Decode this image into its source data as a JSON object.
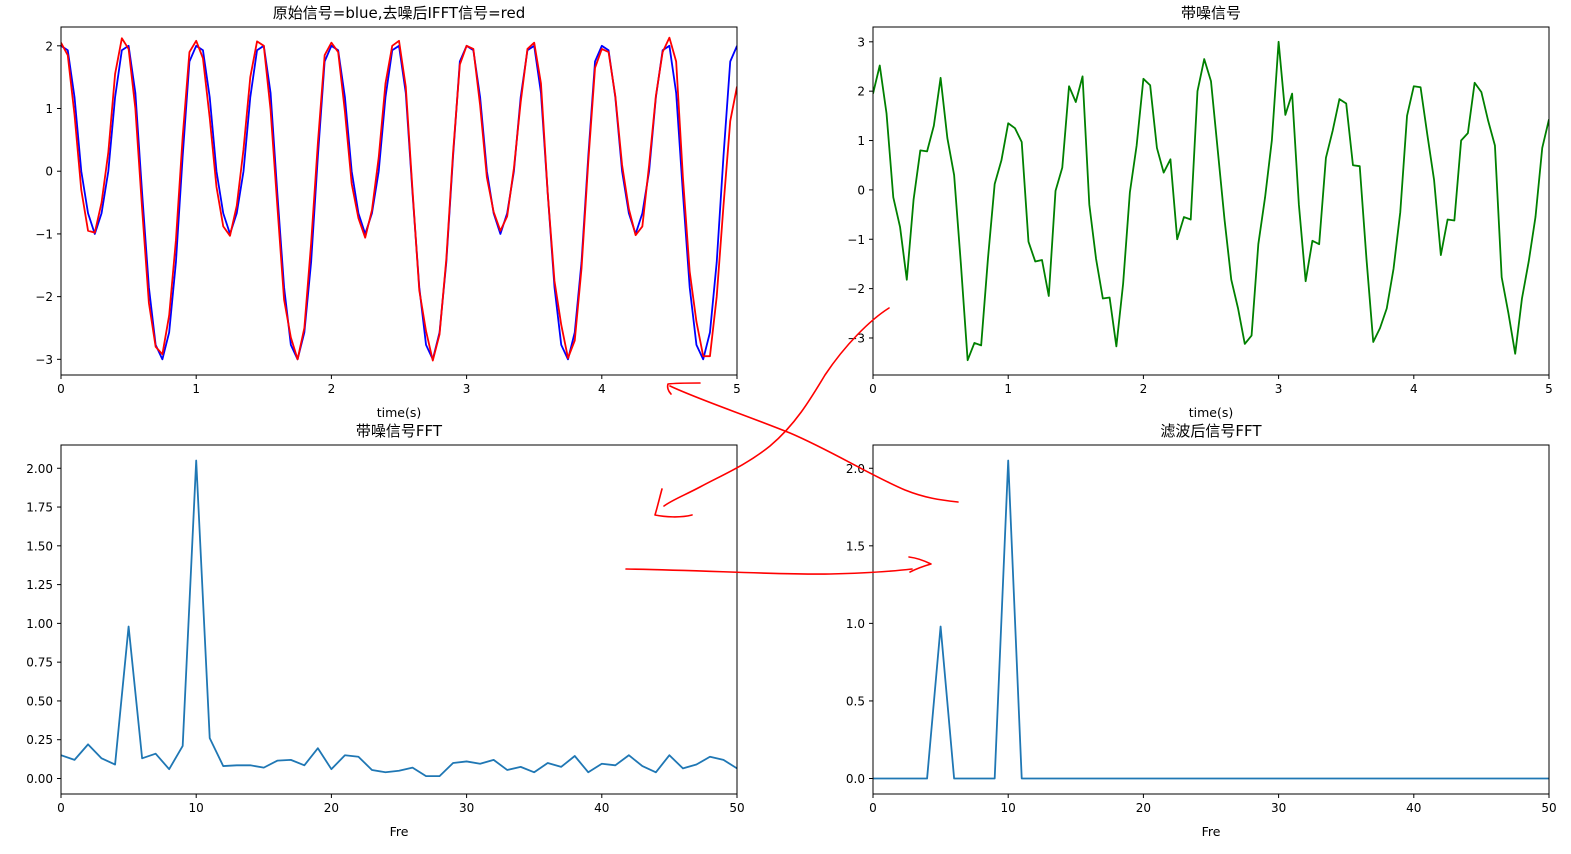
{
  "colors": {
    "blue": "#0000ff",
    "red": "#ff0000",
    "green": "#008000",
    "fft": "#1f77b4",
    "annotation": "#ff0000"
  },
  "chart_data": [
    {
      "type": "line",
      "title": "原始信号=blue,去噪后IFFT信号=red",
      "xlabel": "time(s)",
      "ylabel": "",
      "xlim": [
        0,
        5
      ],
      "ylim": [
        -3.25,
        2.3
      ],
      "xticks": [
        "0",
        "1",
        "2",
        "3",
        "4",
        "5"
      ],
      "yticks": [
        "2",
        "1",
        "0",
        "−1",
        "−2",
        "−3"
      ],
      "grid": false,
      "series": [
        {
          "color": "blue",
          "x": [
            0,
            0.05,
            0.1,
            0.15,
            0.2,
            0.25,
            0.3,
            0.35,
            0.4,
            0.45,
            0.5,
            0.55,
            0.6,
            0.65,
            0.7,
            0.75,
            0.8,
            0.85,
            0.9,
            0.95,
            1.0,
            1.05,
            1.1,
            1.15,
            1.2,
            1.25,
            1.3,
            1.35,
            1.4,
            1.45,
            1.5,
            1.55,
            1.6,
            1.65,
            1.7,
            1.75,
            1.8,
            1.85,
            1.9,
            1.95,
            2.0,
            2.05,
            2.1,
            2.15,
            2.2,
            2.25,
            2.3,
            2.35,
            2.4,
            2.45,
            2.5,
            2.55,
            2.6,
            2.65,
            2.7,
            2.75,
            2.8,
            2.85,
            2.9,
            2.95,
            3.0,
            3.05,
            3.1,
            3.15,
            3.2,
            3.25,
            3.3,
            3.35,
            3.4,
            3.45,
            3.5,
            3.55,
            3.6,
            3.65,
            3.7,
            3.75,
            3.8,
            3.85,
            3.9,
            3.95,
            4.0,
            4.05,
            4.1,
            4.15,
            4.2,
            4.25,
            4.3,
            4.35,
            4.4,
            4.45,
            4.5,
            4.55,
            4.6,
            4.65,
            4.7,
            4.75,
            4.8,
            4.85,
            4.9,
            4.95,
            5.0
          ],
          "y": [
            2.0,
            1.93,
            1.18,
            0.0,
            -0.67,
            -1.0,
            -0.67,
            0.0,
            1.18,
            1.93,
            2.0,
            1.25,
            -0.35,
            -1.85,
            -2.77,
            -3.0,
            -2.57,
            -1.45,
            0.24,
            1.75,
            2.0,
            1.93,
            1.18,
            0.0,
            -0.67,
            -1.0,
            -0.67,
            0.0,
            1.18,
            1.93,
            2.0,
            1.25,
            -0.35,
            -1.85,
            -2.77,
            -3.0,
            -2.57,
            -1.45,
            0.24,
            1.75,
            2.0,
            1.93,
            1.18,
            0.0,
            -0.67,
            -1.0,
            -0.67,
            0.0,
            1.18,
            1.93,
            2.0,
            1.25,
            -0.35,
            -1.85,
            -2.77,
            -3.0,
            -2.57,
            -1.45,
            0.24,
            1.75,
            2.0,
            1.93,
            1.18,
            0.0,
            -0.67,
            -1.0,
            -0.67,
            0.0,
            1.18,
            1.93,
            2.0,
            1.25,
            -0.35,
            -1.85,
            -2.77,
            -3.0,
            -2.57,
            -1.45,
            0.24,
            1.75,
            2.0,
            1.93,
            1.18,
            0.0,
            -0.67,
            -1.0,
            -0.67,
            0.0,
            1.18,
            1.93,
            2.0,
            1.25,
            -0.35,
            -1.85,
            -2.77,
            -3.0,
            -2.57,
            -1.45,
            0.24,
            1.75,
            2.0
          ]
        },
        {
          "color": "red",
          "x": [
            0,
            0.05,
            0.1,
            0.15,
            0.2,
            0.25,
            0.3,
            0.35,
            0.4,
            0.45,
            0.5,
            0.55,
            0.6,
            0.65,
            0.7,
            0.75,
            0.8,
            0.85,
            0.9,
            0.95,
            1.0,
            1.05,
            1.1,
            1.15,
            1.2,
            1.25,
            1.3,
            1.35,
            1.4,
            1.45,
            1.5,
            1.55,
            1.6,
            1.65,
            1.7,
            1.75,
            1.8,
            1.85,
            1.9,
            1.95,
            2.0,
            2.05,
            2.1,
            2.15,
            2.2,
            2.25,
            2.3,
            2.35,
            2.4,
            2.45,
            2.5,
            2.55,
            2.6,
            2.65,
            2.7,
            2.75,
            2.8,
            2.85,
            2.9,
            2.95,
            3.0,
            3.05,
            3.1,
            3.15,
            3.2,
            3.25,
            3.3,
            3.35,
            3.4,
            3.45,
            3.5,
            3.55,
            3.6,
            3.65,
            3.7,
            3.75,
            3.8,
            3.85,
            3.9,
            3.95,
            4.0,
            4.05,
            4.1,
            4.15,
            4.2,
            4.25,
            4.3,
            4.35,
            4.4,
            4.45,
            4.5,
            4.55,
            4.6,
            4.65,
            4.7,
            4.75,
            4.8,
            4.85,
            4.9,
            4.95,
            5.0
          ],
          "y": [
            2.05,
            1.85,
            0.9,
            -0.3,
            -0.95,
            -0.98,
            -0.5,
            0.3,
            1.55,
            2.12,
            1.95,
            1.0,
            -0.6,
            -2.1,
            -2.8,
            -2.92,
            -2.3,
            -1.1,
            0.55,
            1.9,
            2.08,
            1.8,
            0.85,
            -0.25,
            -0.88,
            -1.03,
            -0.55,
            0.35,
            1.5,
            2.07,
            2.0,
            0.98,
            -0.55,
            -2.05,
            -2.65,
            -3.0,
            -2.5,
            -1.15,
            0.45,
            1.85,
            2.05,
            1.9,
            0.95,
            -0.2,
            -0.75,
            -1.06,
            -0.62,
            0.22,
            1.4,
            2.0,
            2.08,
            1.35,
            -0.3,
            -1.9,
            -2.55,
            -3.02,
            -2.6,
            -1.4,
            0.3,
            1.7,
            2.0,
            1.95,
            1.05,
            -0.1,
            -0.65,
            -0.95,
            -0.72,
            0.05,
            1.1,
            1.95,
            2.05,
            1.4,
            -0.35,
            -1.75,
            -2.45,
            -2.98,
            -2.7,
            -1.55,
            0.15,
            1.65,
            1.95,
            1.9,
            1.2,
            0.1,
            -0.6,
            -1.02,
            -0.88,
            0.1,
            1.2,
            1.9,
            2.13,
            1.75,
            -0.1,
            -1.6,
            -2.4,
            -2.95,
            -2.95,
            -2.0,
            -0.55,
            0.8,
            1.35
          ]
        }
      ]
    },
    {
      "type": "line",
      "title": "带噪信号",
      "xlabel": "time(s)",
      "ylabel": "",
      "xlim": [
        0,
        5
      ],
      "ylim": [
        -3.75,
        3.3
      ],
      "xticks": [
        "0",
        "1",
        "2",
        "3",
        "4",
        "5"
      ],
      "yticks": [
        "3",
        "2",
        "1",
        "0",
        "−1",
        "−2",
        "−3"
      ],
      "grid": false,
      "series": [
        {
          "color": "green",
          "x": [
            0,
            0.05,
            0.1,
            0.15,
            0.2,
            0.25,
            0.3,
            0.35,
            0.4,
            0.45,
            0.5,
            0.55,
            0.6,
            0.65,
            0.7,
            0.75,
            0.8,
            0.85,
            0.9,
            0.95,
            1.0,
            1.05,
            1.1,
            1.15,
            1.2,
            1.25,
            1.3,
            1.35,
            1.4,
            1.45,
            1.5,
            1.55,
            1.6,
            1.65,
            1.7,
            1.75,
            1.8,
            1.85,
            1.9,
            1.95,
            2.0,
            2.05,
            2.1,
            2.15,
            2.2,
            2.25,
            2.3,
            2.35,
            2.4,
            2.45,
            2.5,
            2.55,
            2.6,
            2.65,
            2.7,
            2.75,
            2.8,
            2.85,
            2.9,
            2.95,
            3.0,
            3.05,
            3.1,
            3.15,
            3.2,
            3.25,
            3.3,
            3.35,
            3.4,
            3.45,
            3.5,
            3.55,
            3.6,
            3.65,
            3.7,
            3.75,
            3.8,
            3.85,
            3.9,
            3.95,
            4.0,
            4.05,
            4.1,
            4.15,
            4.2,
            4.25,
            4.3,
            4.35,
            4.4,
            4.45,
            4.5,
            4.55,
            4.6,
            4.65,
            4.7,
            4.75,
            4.8,
            4.85,
            4.9,
            4.95,
            5.0
          ],
          "y": [
            1.95,
            2.52,
            1.55,
            -0.15,
            -0.75,
            -1.82,
            -0.2,
            0.8,
            0.78,
            1.3,
            2.27,
            1.05,
            0.3,
            -1.5,
            -3.45,
            -3.1,
            -3.15,
            -1.4,
            0.12,
            0.6,
            1.35,
            1.25,
            0.97,
            -1.05,
            -1.45,
            -1.42,
            -2.15,
            -0.02,
            0.45,
            2.1,
            1.78,
            2.3,
            -0.3,
            -1.4,
            -2.2,
            -2.18,
            -3.17,
            -1.9,
            -0.05,
            0.9,
            2.25,
            2.12,
            0.85,
            0.35,
            0.62,
            -1.0,
            -0.55,
            -0.6,
            2.0,
            2.65,
            2.2,
            0.8,
            -0.6,
            -1.82,
            -2.4,
            -3.12,
            -2.95,
            -1.1,
            -0.15,
            1.0,
            3.0,
            1.52,
            1.95,
            -0.3,
            -1.85,
            -1.03,
            -1.1,
            0.65,
            1.2,
            1.84,
            1.75,
            0.5,
            0.48,
            -1.4,
            -3.08,
            -2.8,
            -2.4,
            -1.6,
            -0.45,
            1.5,
            2.1,
            2.08,
            1.12,
            0.2,
            -1.32,
            -0.6,
            -0.62,
            1.0,
            1.15,
            2.17,
            1.98,
            1.4,
            0.9,
            -1.77,
            -2.5,
            -3.32,
            -2.2,
            -1.45,
            -0.55,
            0.85,
            1.43
          ]
        }
      ]
    },
    {
      "type": "line",
      "title": "带噪信号FFT",
      "xlabel": "Fre",
      "ylabel": "",
      "xlim": [
        0,
        50
      ],
      "ylim": [
        -0.1,
        2.15
      ],
      "xticks": [
        "0",
        "10",
        "20",
        "30",
        "40",
        "50"
      ],
      "yticks": [
        "2.00",
        "1.75",
        "1.50",
        "1.25",
        "1.00",
        "0.75",
        "0.50",
        "0.25",
        "0.00"
      ],
      "grid": false,
      "series": [
        {
          "color": "fft",
          "x": [
            0,
            1,
            2,
            3,
            4,
            5,
            6,
            7,
            8,
            9,
            10,
            11,
            12,
            13,
            14,
            15,
            16,
            17,
            18,
            19,
            20,
            21,
            22,
            23,
            24,
            25,
            26,
            27,
            28,
            29,
            30,
            31,
            32,
            33,
            34,
            35,
            36,
            37,
            38,
            39,
            40,
            41,
            42,
            43,
            44,
            45,
            46,
            47,
            48,
            49,
            50
          ],
          "y": [
            0.15,
            0.12,
            0.22,
            0.13,
            0.09,
            0.98,
            0.13,
            0.16,
            0.06,
            0.21,
            2.05,
            0.26,
            0.08,
            0.085,
            0.085,
            0.07,
            0.115,
            0.12,
            0.085,
            0.195,
            0.06,
            0.15,
            0.14,
            0.055,
            0.04,
            0.05,
            0.07,
            0.015,
            0.015,
            0.1,
            0.11,
            0.095,
            0.12,
            0.055,
            0.075,
            0.04,
            0.1,
            0.075,
            0.145,
            0.04,
            0.095,
            0.085,
            0.15,
            0.08,
            0.04,
            0.15,
            0.065,
            0.09,
            0.14,
            0.12,
            0.065
          ]
        }
      ]
    },
    {
      "type": "line",
      "title": "滤波后信号FFT",
      "xlabel": "Fre",
      "ylabel": "",
      "xlim": [
        0,
        50
      ],
      "ylim": [
        -0.1,
        2.15
      ],
      "xticks": [
        "0",
        "10",
        "20",
        "30",
        "40",
        "50"
      ],
      "yticks": [
        "2.0",
        "1.5",
        "1.0",
        "0.5",
        "0.0"
      ],
      "grid": false,
      "series": [
        {
          "color": "fft",
          "x": [
            0,
            1,
            2,
            3,
            4,
            5,
            6,
            7,
            8,
            9,
            10,
            11,
            12,
            13,
            14,
            15,
            16,
            17,
            18,
            19,
            20,
            21,
            22,
            23,
            24,
            25,
            26,
            27,
            28,
            29,
            30,
            31,
            32,
            33,
            34,
            35,
            36,
            37,
            38,
            39,
            40,
            41,
            42,
            43,
            44,
            45,
            46,
            47,
            48,
            49,
            50
          ],
          "y": [
            0,
            0,
            0,
            0,
            0,
            0.98,
            0,
            0,
            0,
            0,
            2.05,
            0,
            0,
            0,
            0,
            0,
            0,
            0,
            0,
            0,
            0,
            0,
            0,
            0,
            0,
            0,
            0,
            0,
            0,
            0,
            0,
            0,
            0,
            0,
            0,
            0,
            0,
            0,
            0,
            0,
            0,
            0,
            0,
            0,
            0,
            0,
            0,
            0,
            0,
            0,
            0
          ]
        }
      ]
    }
  ]
}
